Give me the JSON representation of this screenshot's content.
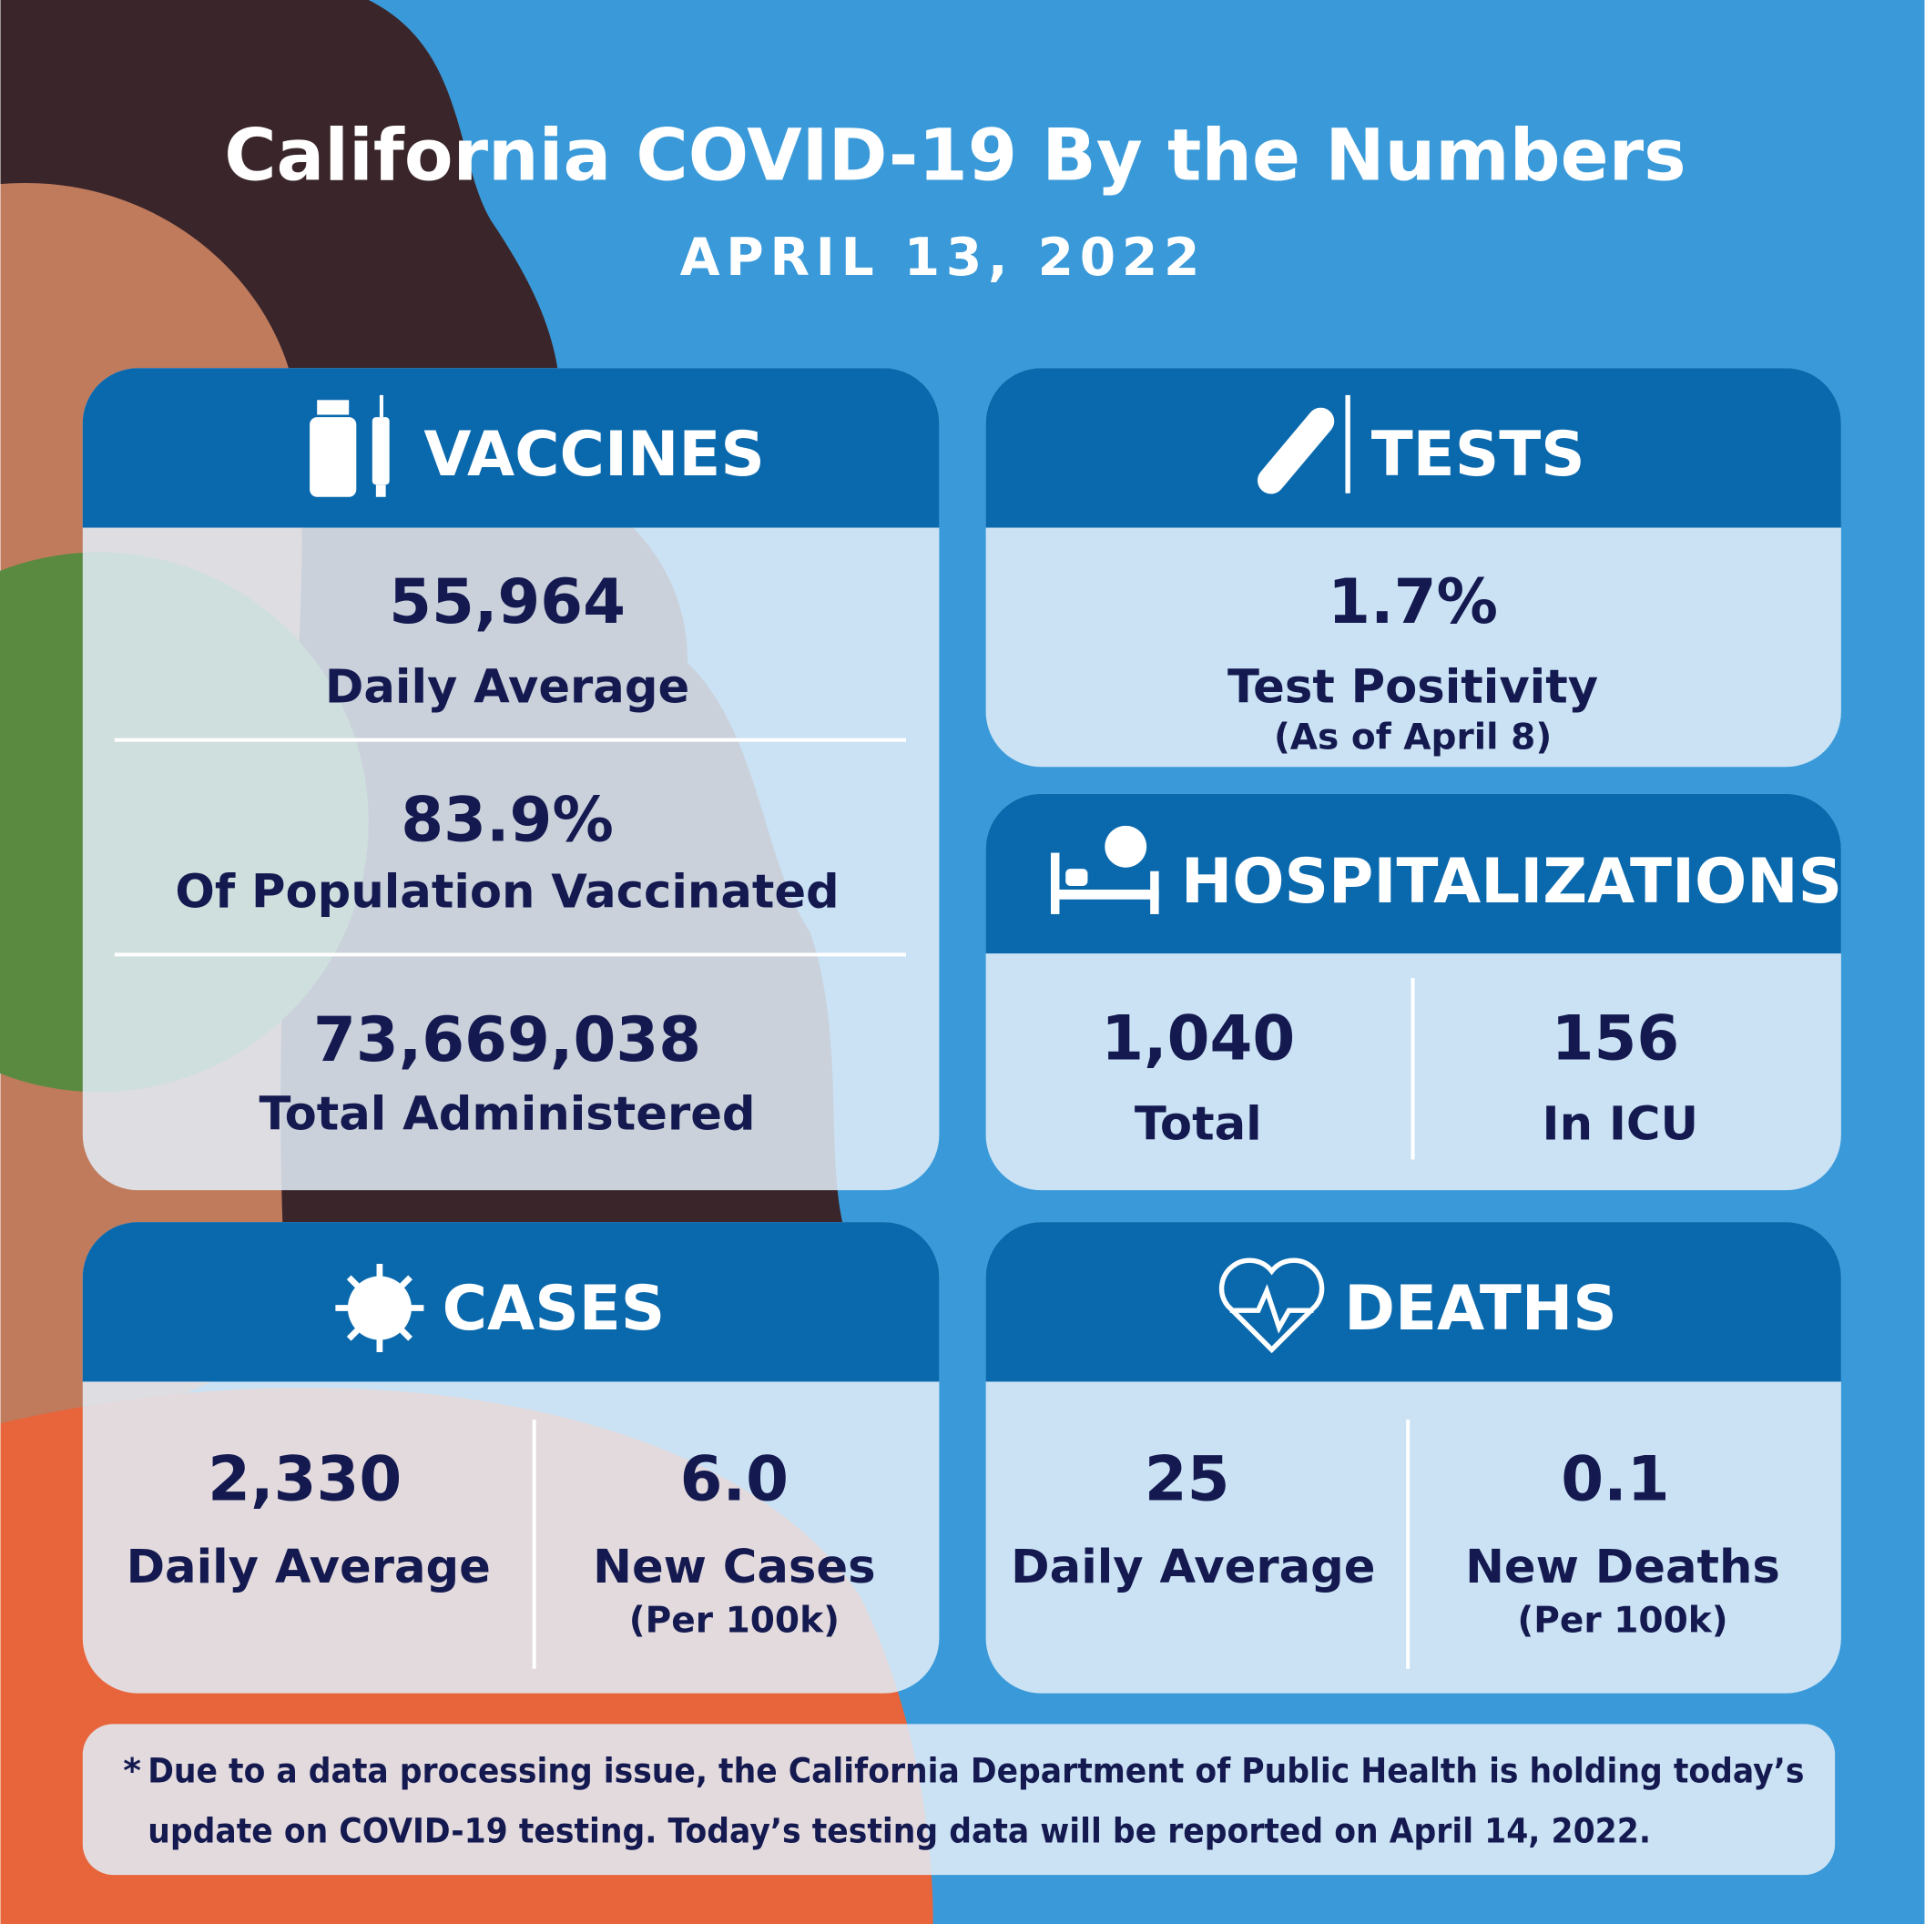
{
  "header": {
    "title": "California COVID-19 By the Numbers",
    "date": "APRIL 13, 2022"
  },
  "vaccines": {
    "heading": "VACCINES",
    "stats": [
      {
        "value": "55,964",
        "label": "Daily Average"
      },
      {
        "value": "83.9%",
        "label": "Of Population Vaccinated"
      },
      {
        "value": "73,669,038",
        "label": "Total Administered"
      }
    ]
  },
  "tests": {
    "heading": "TESTS",
    "stats": [
      {
        "value": "1.7%",
        "label": "Test Positivity",
        "note": "(As of April 8)"
      }
    ]
  },
  "hospitalizations": {
    "heading": "HOSPITALIZATIONS",
    "stats": [
      {
        "value": "1,040",
        "label": "Total"
      },
      {
        "value": "156",
        "label": "In ICU"
      }
    ]
  },
  "cases": {
    "heading": "CASES",
    "stats": [
      {
        "value": "2,330",
        "label": "Daily Average"
      },
      {
        "value": "6.0",
        "label": "New Cases",
        "note": "(Per 100k)"
      }
    ]
  },
  "deaths": {
    "heading": "DEATHS",
    "stats": [
      {
        "value": "25",
        "label": "Daily Average"
      },
      {
        "value": "0.1",
        "label": "New Deaths",
        "note": "(Per 100k)"
      }
    ]
  },
  "footnote": {
    "marker": "*",
    "lines": [
      "Due to a data processing issue, the California Department of Public Health is holding today’s",
      "update on COVID-19 testing. Today’s testing data will be reported on April 14, 2022."
    ]
  }
}
